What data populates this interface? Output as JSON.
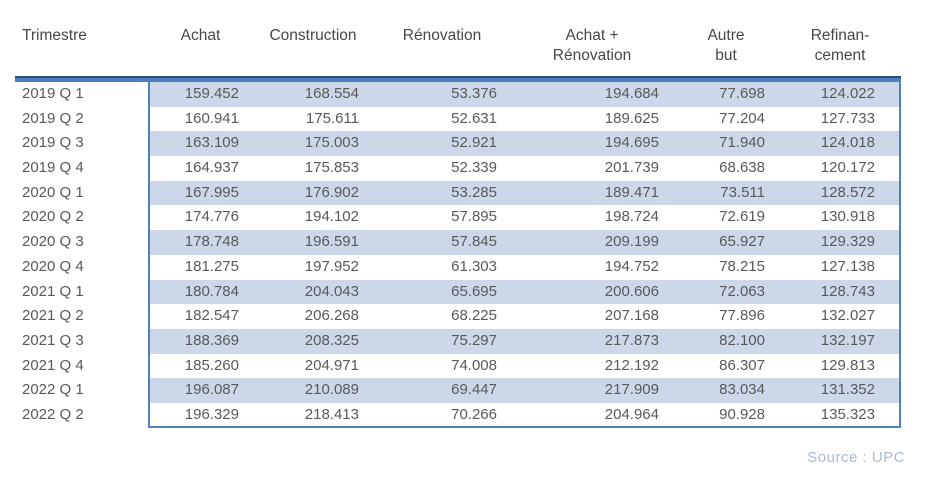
{
  "table": {
    "columns": [
      {
        "line1": "Trimestre",
        "line2": ""
      },
      {
        "line1": "Achat",
        "line2": ""
      },
      {
        "line1": "Construction",
        "line2": ""
      },
      {
        "line1": "Rénovation",
        "line2": ""
      },
      {
        "line1": "Achat +",
        "line2": "Rénovation"
      },
      {
        "line1": "Autre",
        "line2": "but"
      },
      {
        "line1": "Refinan-",
        "line2": "cement"
      }
    ],
    "rows": [
      {
        "label": "2019 Q 1",
        "values": [
          "159.452",
          "168.554",
          "53.376",
          "194.684",
          "77.698",
          "124.022"
        ]
      },
      {
        "label": "2019 Q 2",
        "values": [
          "160.941",
          "175.611",
          "52.631",
          "189.625",
          "77.204",
          "127.733"
        ]
      },
      {
        "label": "2019 Q 3",
        "values": [
          "163.109",
          "175.003",
          "52.921",
          "194.695",
          "71.940",
          "124.018"
        ]
      },
      {
        "label": "2019 Q 4",
        "values": [
          "164.937",
          "175.853",
          "52.339",
          "201.739",
          "68.638",
          "120.172"
        ]
      },
      {
        "label": "2020 Q 1",
        "values": [
          "167.995",
          "176.902",
          "53.285",
          "189.471",
          "73.511",
          "128.572"
        ]
      },
      {
        "label": "2020 Q 2",
        "values": [
          "174.776",
          "194.102",
          "57.895",
          "198.724",
          "72.619",
          "130.918"
        ]
      },
      {
        "label": "2020 Q 3",
        "values": [
          "178.748",
          "196.591",
          "57.845",
          "209.199",
          "65.927",
          "129.329"
        ]
      },
      {
        "label": "2020 Q 4",
        "values": [
          "181.275",
          "197.952",
          "61.303",
          "194.752",
          "78.215",
          "127.138"
        ]
      },
      {
        "label": "2021 Q 1",
        "values": [
          "180.784",
          "204.043",
          "65.695",
          "200.606",
          "72.063",
          "128.743"
        ]
      },
      {
        "label": "2021 Q 2",
        "values": [
          "182.547",
          "206.268",
          "68.225",
          "207.168",
          "77.896",
          "132.027"
        ]
      },
      {
        "label": "2021 Q 3",
        "values": [
          "188.369",
          "208.325",
          "75.297",
          "217.873",
          "82.100",
          "132.197"
        ]
      },
      {
        "label": "2021 Q 4",
        "values": [
          "185.260",
          "204.971",
          "74.008",
          "212.192",
          "86.307",
          "129.813"
        ]
      },
      {
        "label": "2022 Q 1",
        "values": [
          "196.087",
          "210.089",
          "69.447",
          "217.909",
          "83.034",
          "131.352"
        ]
      },
      {
        "label": "2022 Q 2",
        "values": [
          "196.329",
          "218.413",
          "70.266",
          "204.964",
          "90.928",
          "135.323"
        ]
      }
    ]
  },
  "footer": {
    "source": "Source : UPC"
  },
  "colors": {
    "stripe": "#ccd8ea",
    "border_blue": "#4f81bd",
    "bar_dark": "#2a4d79",
    "bar_blue": "#4d7fbd",
    "text": "#595959",
    "header_text": "#474747",
    "source_text": "#a9bbd2"
  },
  "chart_data": {
    "type": "table",
    "title": "",
    "categories": [
      "2019 Q 1",
      "2019 Q 2",
      "2019 Q 3",
      "2019 Q 4",
      "2020 Q 1",
      "2020 Q 2",
      "2020 Q 3",
      "2020 Q 4",
      "2021 Q 1",
      "2021 Q 2",
      "2021 Q 3",
      "2021 Q 4",
      "2022 Q 1",
      "2022 Q 2"
    ],
    "xlabel": "Trimestre",
    "series": [
      {
        "name": "Achat",
        "values": [
          159452,
          160941,
          163109,
          164937,
          167995,
          174776,
          178748,
          181275,
          180784,
          182547,
          188369,
          185260,
          196087,
          196329
        ]
      },
      {
        "name": "Construction",
        "values": [
          168554,
          175611,
          175003,
          175853,
          176902,
          194102,
          196591,
          197952,
          204043,
          206268,
          208325,
          204971,
          210089,
          218413
        ]
      },
      {
        "name": "Rénovation",
        "values": [
          53376,
          52631,
          52921,
          52339,
          53285,
          57895,
          57845,
          61303,
          65695,
          68225,
          75297,
          74008,
          69447,
          70266
        ]
      },
      {
        "name": "Achat + Rénovation",
        "values": [
          194684,
          189625,
          194695,
          201739,
          189471,
          198724,
          209199,
          194752,
          200606,
          207168,
          217873,
          212192,
          217909,
          204964
        ]
      },
      {
        "name": "Autre but",
        "values": [
          77698,
          77204,
          71940,
          68638,
          73511,
          72619,
          65927,
          78215,
          72063,
          77896,
          82100,
          86307,
          83034,
          90928
        ]
      },
      {
        "name": "Refinancement",
        "values": [
          124022,
          127733,
          124018,
          120172,
          128572,
          130918,
          129329,
          127138,
          128743,
          132027,
          132197,
          129813,
          131352,
          135323
        ]
      }
    ],
    "source": "Source : UPC"
  }
}
